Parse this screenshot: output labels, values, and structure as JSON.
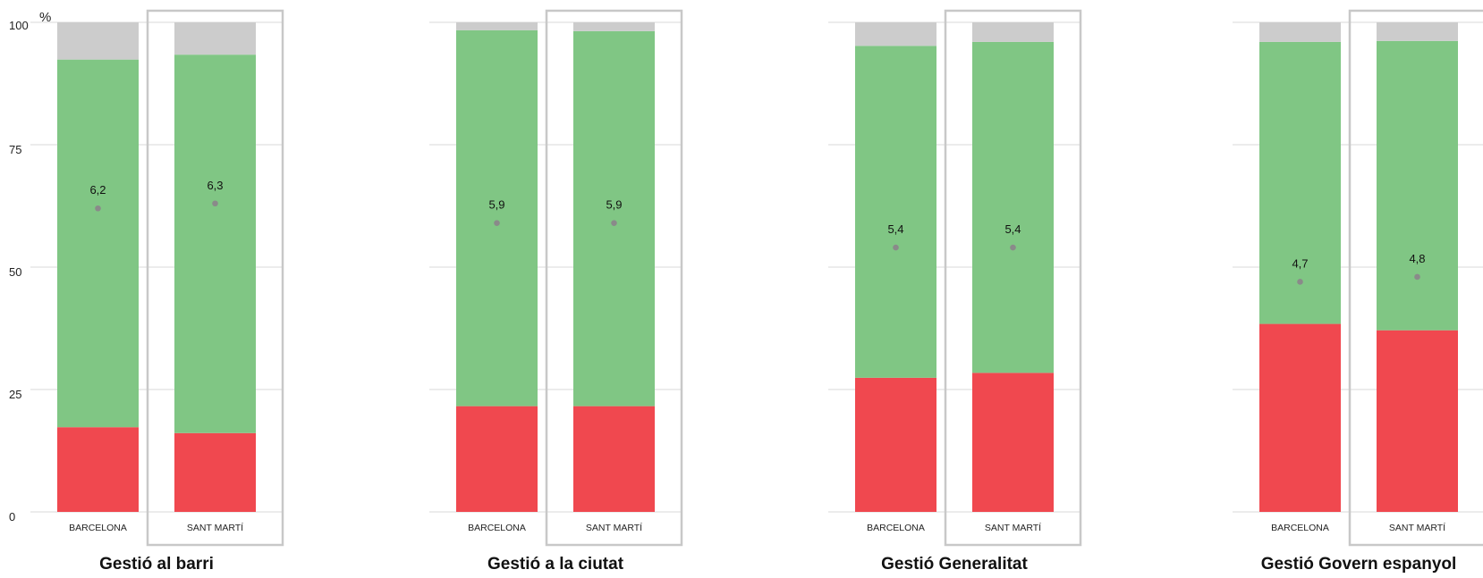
{
  "chart_data": {
    "type": "bar",
    "stacked": true,
    "y_unit": "%",
    "ylim": [
      0,
      100
    ],
    "yticks": [
      0,
      25,
      50,
      75,
      100
    ],
    "grid": true,
    "colors": {
      "low": "#f0484f",
      "mid": "#80c684",
      "rest": "#cccccc",
      "mean_dot": "#8a8a8a",
      "frame": "#c8c8c8"
    },
    "panels": [
      {
        "title": "Gestió al barri",
        "bars": [
          {
            "category": "BARCELONA",
            "low": 17.3,
            "mid": 75.1,
            "rest": 7.6,
            "mean": 6.2,
            "mean_label": "6,2",
            "highlighted": false
          },
          {
            "category": "SANT MARTÍ",
            "low": 16.1,
            "mid": 77.3,
            "rest": 6.6,
            "mean": 6.3,
            "mean_label": "6,3",
            "highlighted": true
          }
        ]
      },
      {
        "title": "Gestió a la ciutat",
        "bars": [
          {
            "category": "BARCELONA",
            "low": 21.6,
            "mid": 76.8,
            "rest": 1.6,
            "mean": 5.9,
            "mean_label": "5,9",
            "highlighted": false
          },
          {
            "category": "SANT MARTÍ",
            "low": 21.6,
            "mid": 76.6,
            "rest": 1.8,
            "mean": 5.9,
            "mean_label": "5,9",
            "highlighted": true
          }
        ]
      },
      {
        "title": "Gestió Generalitat",
        "bars": [
          {
            "category": "BARCELONA",
            "low": 27.4,
            "mid": 67.8,
            "rest": 4.8,
            "mean": 5.4,
            "mean_label": "5,4",
            "highlighted": false
          },
          {
            "category": "SANT MARTÍ",
            "low": 28.4,
            "mid": 67.6,
            "rest": 4.0,
            "mean": 5.4,
            "mean_label": "5,4",
            "highlighted": true
          }
        ]
      },
      {
        "title": "Gestió Govern espanyol",
        "bars": [
          {
            "category": "BARCELONA",
            "low": 38.4,
            "mid": 57.6,
            "rest": 4.0,
            "mean": 4.7,
            "mean_label": "4,7",
            "highlighted": false
          },
          {
            "category": "SANT MARTÍ",
            "low": 37.1,
            "mid": 59.1,
            "rest": 3.8,
            "mean": 4.8,
            "mean_label": "4,8",
            "highlighted": true
          }
        ]
      }
    ]
  }
}
